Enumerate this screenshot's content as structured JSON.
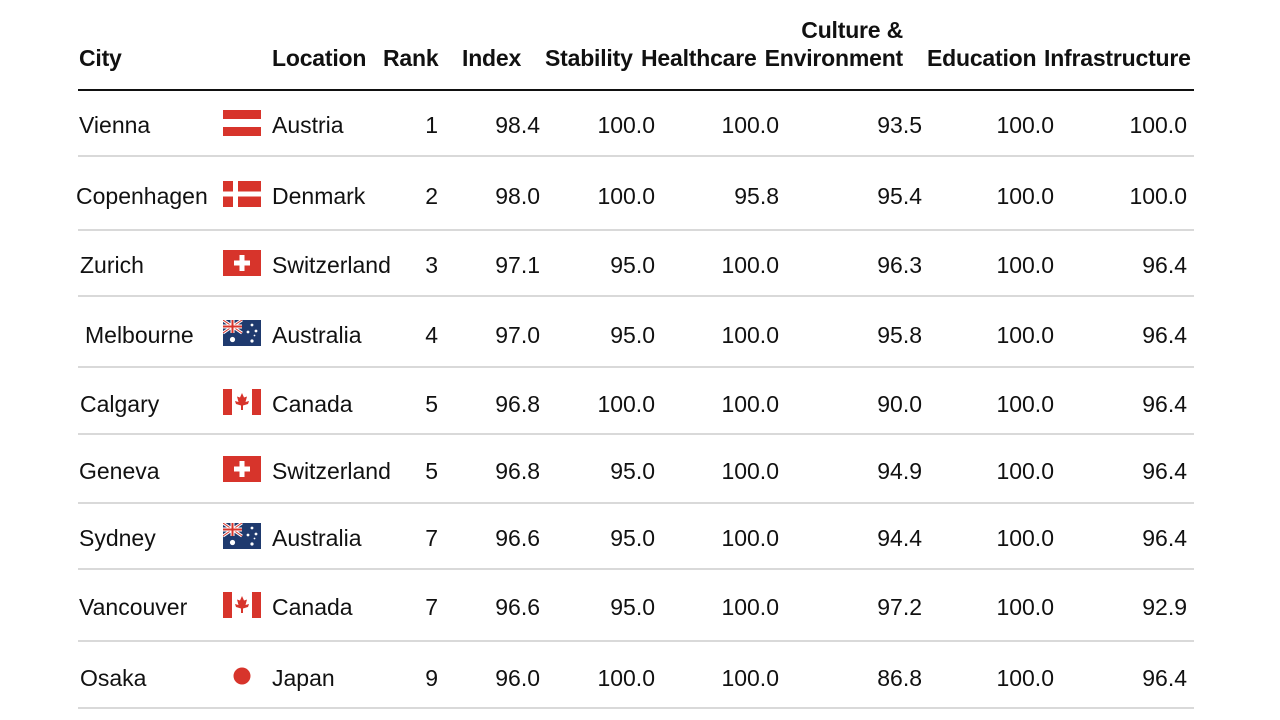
{
  "chart_data": {
    "type": "table",
    "columns": [
      {
        "key": "city",
        "label_lines": [
          "City"
        ]
      },
      {
        "key": "location",
        "label_lines": [
          "Location"
        ]
      },
      {
        "key": "rank",
        "label_lines": [
          "Rank"
        ]
      },
      {
        "key": "index",
        "label_lines": [
          "Index"
        ]
      },
      {
        "key": "stability",
        "label_lines": [
          "Stability"
        ]
      },
      {
        "key": "healthcare",
        "label_lines": [
          "Healthcare"
        ]
      },
      {
        "key": "culture_environment",
        "label_lines": [
          "Culture &",
          "Environment"
        ]
      },
      {
        "key": "education",
        "label_lines": [
          "Education"
        ]
      },
      {
        "key": "infrastructure",
        "label_lines": [
          "Infrastructure"
        ]
      }
    ],
    "rows": [
      {
        "city": "Vienna",
        "flag": "austria",
        "location": "Austria",
        "rank": "1",
        "index": "98.4",
        "stability": "100.0",
        "healthcare": "100.0",
        "culture_environment": "93.5",
        "education": "100.0",
        "infrastructure": "100.0"
      },
      {
        "city": "Copenhagen",
        "flag": "denmark",
        "location": "Denmark",
        "rank": "2",
        "index": "98.0",
        "stability": "100.0",
        "healthcare": "95.8",
        "culture_environment": "95.4",
        "education": "100.0",
        "infrastructure": "100.0"
      },
      {
        "city": "Zurich",
        "flag": "switzerland",
        "location": "Switzerland",
        "rank": "3",
        "index": "97.1",
        "stability": "95.0",
        "healthcare": "100.0",
        "culture_environment": "96.3",
        "education": "100.0",
        "infrastructure": "96.4"
      },
      {
        "city": "Melbourne",
        "flag": "australia",
        "location": "Australia",
        "rank": "4",
        "index": "97.0",
        "stability": "95.0",
        "healthcare": "100.0",
        "culture_environment": "95.8",
        "education": "100.0",
        "infrastructure": "96.4"
      },
      {
        "city": "Calgary",
        "flag": "canada",
        "location": "Canada",
        "rank": "5",
        "index": "96.8",
        "stability": "100.0",
        "healthcare": "100.0",
        "culture_environment": "90.0",
        "education": "100.0",
        "infrastructure": "96.4"
      },
      {
        "city": "Geneva",
        "flag": "switzerland",
        "location": "Switzerland",
        "rank": "5",
        "index": "96.8",
        "stability": "95.0",
        "healthcare": "100.0",
        "culture_environment": "94.9",
        "education": "100.0",
        "infrastructure": "96.4"
      },
      {
        "city": "Sydney",
        "flag": "australia",
        "location": "Australia",
        "rank": "7",
        "index": "96.6",
        "stability": "95.0",
        "healthcare": "100.0",
        "culture_environment": "94.4",
        "education": "100.0",
        "infrastructure": "96.4"
      },
      {
        "city": "Vancouver",
        "flag": "canada",
        "location": "Canada",
        "rank": "7",
        "index": "96.6",
        "stability": "95.0",
        "healthcare": "100.0",
        "culture_environment": "97.2",
        "education": "100.0",
        "infrastructure": "92.9"
      },
      {
        "city": "Osaka",
        "flag": "japan",
        "location": "Japan",
        "rank": "9",
        "index": "96.0",
        "stability": "100.0",
        "healthcare": "100.0",
        "culture_environment": "86.8",
        "education": "100.0",
        "infrastructure": "96.4"
      }
    ],
    "colors": {
      "flag_red": "#d7342b",
      "flag_navy": "#1f3a6e",
      "header_rule": "#111111",
      "row_rule": "#d9d9d9"
    }
  }
}
